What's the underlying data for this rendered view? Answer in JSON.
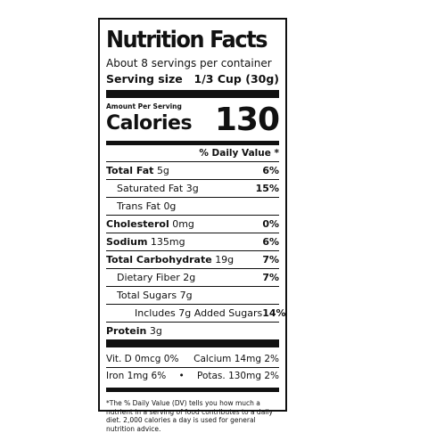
{
  "label": {
    "title": "Nutrition Facts",
    "servings_per_container": "About 8 servings per container",
    "serving_size_label": "Serving size",
    "serving_size_value": "1/3 Cup (30g)",
    "amount_per_serving": "Amount Per Serving",
    "calories_label": "Calories",
    "calories_value": "130",
    "daily_value_header": "% Daily Value *",
    "nutrients": [
      {
        "label": "Total Fat",
        "amount": "5g",
        "dv": "6%"
      },
      {
        "label": "Saturated Fat",
        "amount": "3g",
        "dv": "15%"
      },
      {
        "label": "Trans Fat",
        "amount": "0g",
        "dv": ""
      },
      {
        "label": "Cholesterol",
        "amount": "0mg",
        "dv": "0%"
      },
      {
        "label": "Sodium",
        "amount": "135mg",
        "dv": "6%"
      },
      {
        "label": "Total Carbohydrate",
        "amount": "19g",
        "dv": "7%"
      },
      {
        "label": "Dietary Fiber",
        "amount": "2g",
        "dv": "7%"
      },
      {
        "label": "Total Sugars",
        "amount": "7g",
        "dv": ""
      },
      {
        "label": "Includes 7g Added Sugars",
        "amount": "",
        "dv": "14%"
      },
      {
        "label": "Protein",
        "amount": "3g",
        "dv": ""
      }
    ],
    "vitamins": [
      {
        "text": "Vit. D 0mcg 0%"
      },
      {
        "text": "Calcium 14mg 2%"
      },
      {
        "text": "Iron 1mg 6%"
      },
      {
        "text": "Potas. 130mg 2%"
      }
    ],
    "vitamin_separator": "•",
    "footnote": "*The % Daily Value (DV) tells you how much a nutrient in a serving of food contributes to a daily diet. 2,000 calories a day is used for general nutrition advice."
  }
}
